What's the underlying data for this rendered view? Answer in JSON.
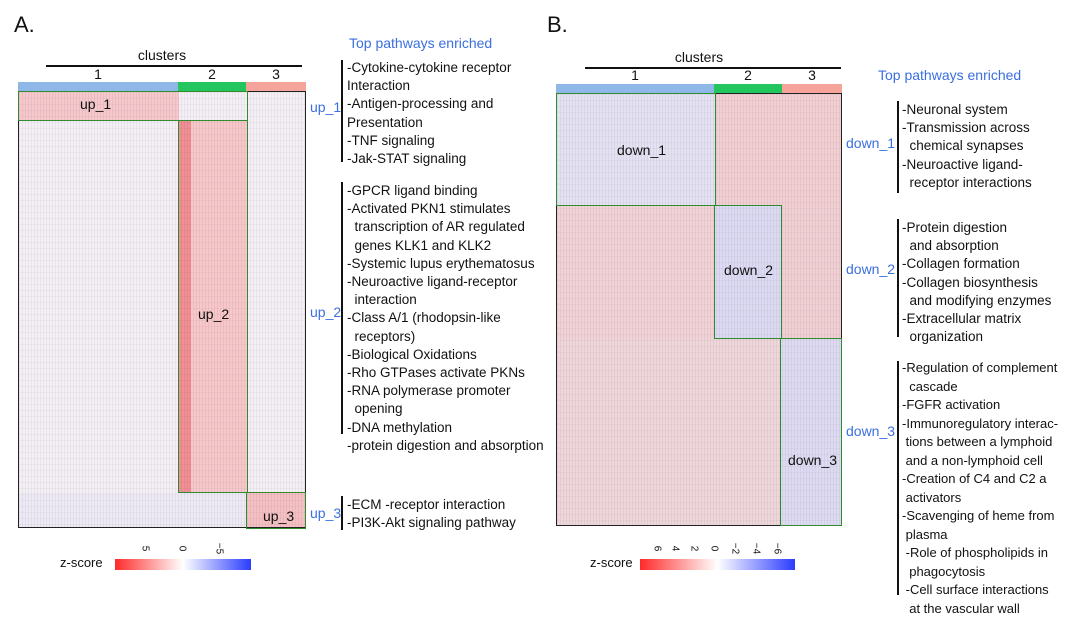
{
  "colors": {
    "cluster_1": "#8fb8e8",
    "cluster_2": "#22c55e",
    "cluster_3": "#f4a49a",
    "box": "#2e8b2e",
    "module_label": "#3a6fe0",
    "scale_high": "#ff2a2a",
    "scale_mid": "#ffffff",
    "scale_low": "#2b3cff"
  },
  "panelA": {
    "label": "A.",
    "clusters_title": "clusters",
    "clusters": [
      "1",
      "2",
      "3"
    ],
    "pathways_title": "Top pathways enriched",
    "modules": [
      {
        "box_label": "up_1",
        "side_label": "up_1",
        "pathways": "-Cytokine-cytokine receptor\nInteraction\n-Antigen-processing and\nPresentation\n-TNF signaling\n-Jak-STAT signaling"
      },
      {
        "box_label": "up_2",
        "side_label": "up_2",
        "pathways": "-GPCR ligand binding\n-Activated PKN1 stimulates\n  transcription of AR regulated\n  genes KLK1 and KLK2\n-Systemic lupus erythematosus\n-Neuroactive ligand-receptor\n  interaction\n-Class A/1 (rhodopsin-like\n  receptors)\n-Biological Oxidations\n-Rho GTPases activate PKNs\n-RNA polymerase promoter\n  opening\n-DNA methylation\n-protein digestion and absorption"
      },
      {
        "box_label": "up_3",
        "side_label": "up_3",
        "pathways": "-ECM -receptor interaction\n-PI3K-Akt signaling pathway"
      }
    ],
    "scale": {
      "label": "z-score",
      "ticks": [
        "5",
        "0",
        "−5"
      ]
    }
  },
  "panelB": {
    "label": "B.",
    "clusters_title": "clusters",
    "clusters": [
      "1",
      "2",
      "3"
    ],
    "pathways_title": "Top pathways enriched",
    "modules": [
      {
        "box_label": "down_1",
        "side_label": "down_1",
        "pathways": "-Neuronal system\n-Transmission across\n  chemical synapses\n-Neuroactive ligand-\n  receptor interactions"
      },
      {
        "box_label": "down_2",
        "side_label": "down_2",
        "pathways": "-Protein digestion\n  and absorption\n-Collagen formation\n-Collagen biosynthesis\n  and modifying enzymes\n-Extracellular matrix\n  organization"
      },
      {
        "box_label": "down_3",
        "side_label": "down_3",
        "pathways": "-Regulation of complement\n  cascade\n-FGFR activation\n-Immunoregulatory interac-\n tions between a lymphoid\n and a non-lymphoid cell\n-Creation of C4 and C2 a\n activators\n-Scavenging of heme from\n plasma\n -Role of phospholipids in\n  phagocytosis\n -Cell surface interactions\n  at the vascular wall"
      }
    ],
    "scale": {
      "label": "z-score",
      "ticks": [
        "6",
        "4",
        "2",
        "0",
        "−2",
        "−4",
        "−6"
      ]
    }
  },
  "chart_data": [
    {
      "type": "heatmap",
      "panel": "A.",
      "x_groups": [
        "1",
        "2",
        "3"
      ],
      "row_modules": [
        "up_1",
        "up_2",
        "up_3"
      ],
      "legend": {
        "title": "z-score",
        "range": [
          -5,
          5
        ],
        "ticks": [
          5,
          0,
          -5
        ]
      }
    },
    {
      "type": "heatmap",
      "panel": "B.",
      "x_groups": [
        "1",
        "2",
        "3"
      ],
      "row_modules": [
        "down_1",
        "down_2",
        "down_3"
      ],
      "legend": {
        "title": "z-score",
        "range": [
          -6,
          6
        ],
        "ticks": [
          6,
          4,
          2,
          0,
          -2,
          -4,
          -6
        ]
      }
    }
  ]
}
